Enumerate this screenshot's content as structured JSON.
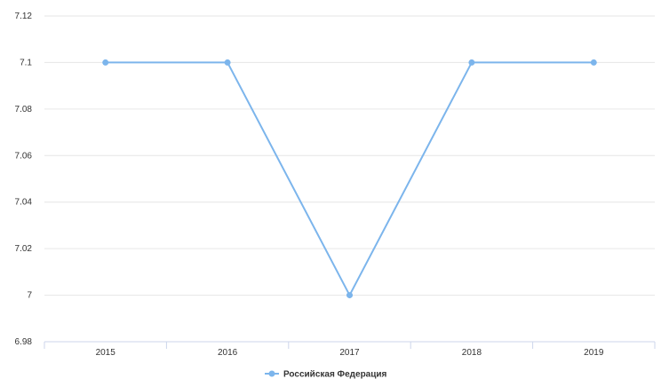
{
  "chart_data": {
    "type": "line",
    "title": "",
    "xlabel": "",
    "ylabel": "",
    "categories": [
      "2015",
      "2016",
      "2017",
      "2018",
      "2019"
    ],
    "series": [
      {
        "name": "Российская Федерация",
        "values": [
          7.1,
          7.1,
          7.0,
          7.1,
          7.1
        ],
        "color": "#7cb5ec"
      }
    ],
    "ylim": [
      6.98,
      7.12
    ],
    "yticks": [
      {
        "value": 7.12,
        "label": "7.12"
      },
      {
        "value": 7.1,
        "label": "7.1"
      },
      {
        "value": 7.08,
        "label": "7.08"
      },
      {
        "value": 7.06,
        "label": "7.06"
      },
      {
        "value": 7.04,
        "label": "7.04"
      },
      {
        "value": 7.02,
        "label": "7.02"
      },
      {
        "value": 7.0,
        "label": "7"
      },
      {
        "value": 6.98,
        "label": "6.98"
      }
    ],
    "grid": true,
    "legend_position": "bottom-center",
    "gridline_color": "#e6e6e6",
    "axis_color": "#ccd6eb"
  }
}
